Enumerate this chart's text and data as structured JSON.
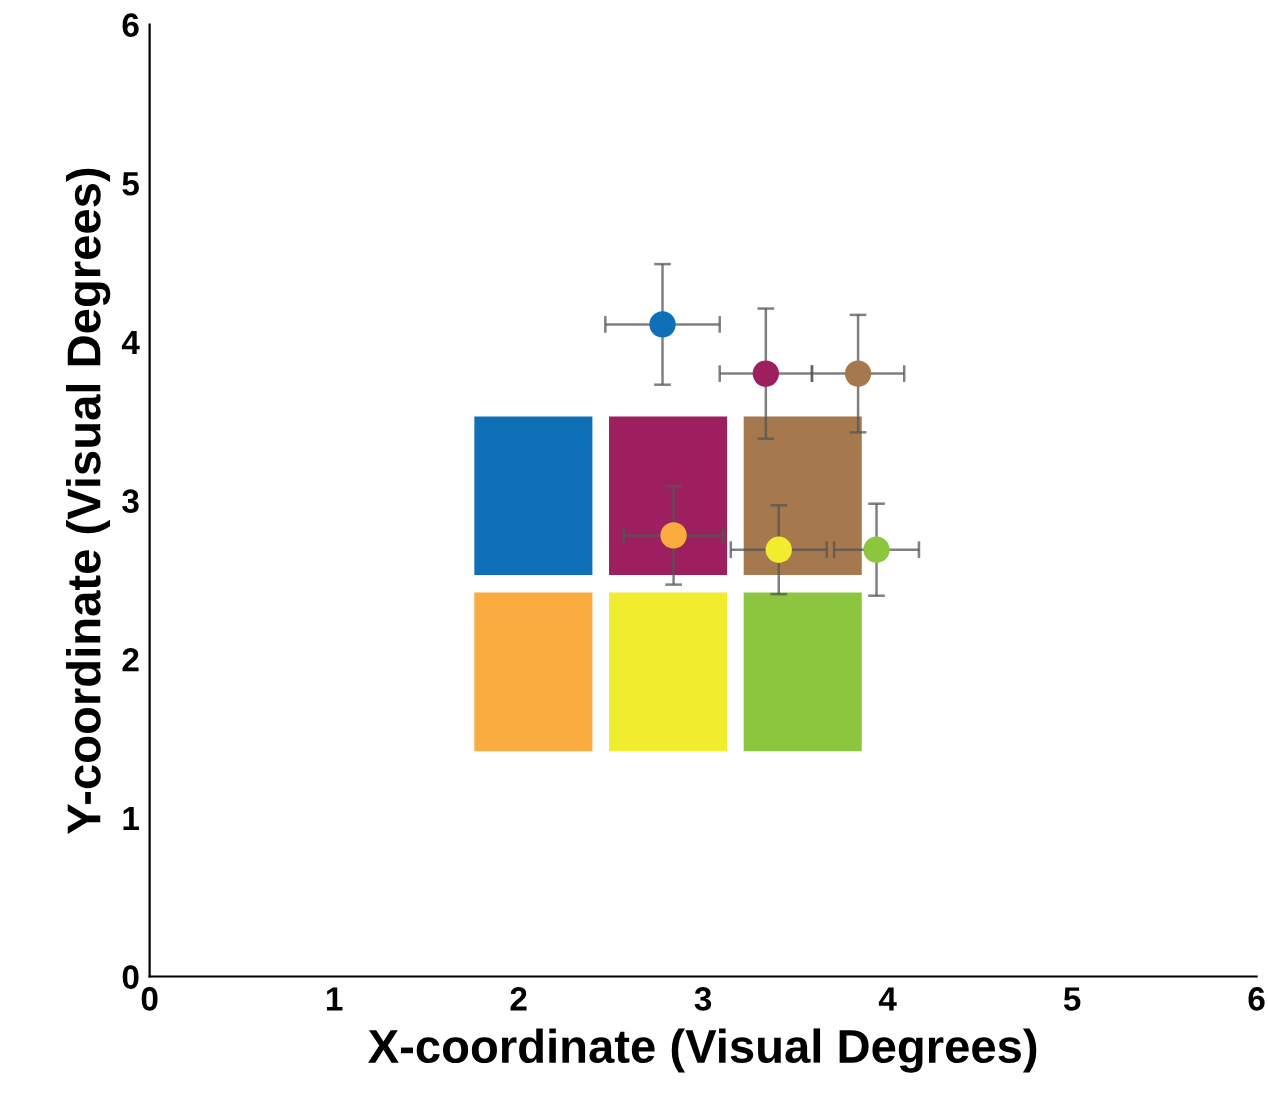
{
  "chart_data": {
    "type": "scatter",
    "xlabel": "X-coordinate (Visual Degrees)",
    "ylabel": "Y-coordinate (Visual Degrees)",
    "xlim": [
      0,
      6
    ],
    "ylim": [
      0,
      6
    ],
    "xticks": [
      0,
      1,
      2,
      3,
      4,
      5,
      6
    ],
    "yticks": [
      0,
      1,
      2,
      3,
      4,
      5,
      6
    ],
    "grid": false,
    "legend": false,
    "marker": "circle",
    "series": [
      {
        "type": "bar",
        "x": [
          2.08,
          2.81,
          3.54
        ],
        "base": [
          2.53,
          2.53,
          2.53
        ],
        "values": [
          1.0,
          1.0,
          1.0
        ],
        "colors": [
          "#0f70b8",
          "#9e1f5f",
          "#a6784e"
        ]
      },
      {
        "type": "bar",
        "x": [
          2.08,
          2.81,
          3.54
        ],
        "base": [
          1.42,
          1.42,
          1.42
        ],
        "values": [
          1.0,
          1.0,
          1.0
        ],
        "colors": [
          "#faac3e",
          "#f2ec2e",
          "#8cc63f"
        ]
      },
      {
        "x": [
          2.78,
          3.34,
          3.84,
          2.84,
          3.41,
          3.94
        ],
        "values": [
          4.11,
          3.8,
          3.8,
          2.78,
          2.69,
          2.69
        ],
        "errors": [
          0.38,
          0.41,
          0.37,
          0.31,
          0.28,
          0.29
        ],
        "xerrors": [
          0.31,
          0.25,
          0.25,
          0.27,
          0.26,
          0.23
        ],
        "colors": [
          "#0f70b8",
          "#9e1f5f",
          "#a6784e",
          "#faac3e",
          "#f2ec2e",
          "#8cc63f"
        ]
      }
    ]
  }
}
